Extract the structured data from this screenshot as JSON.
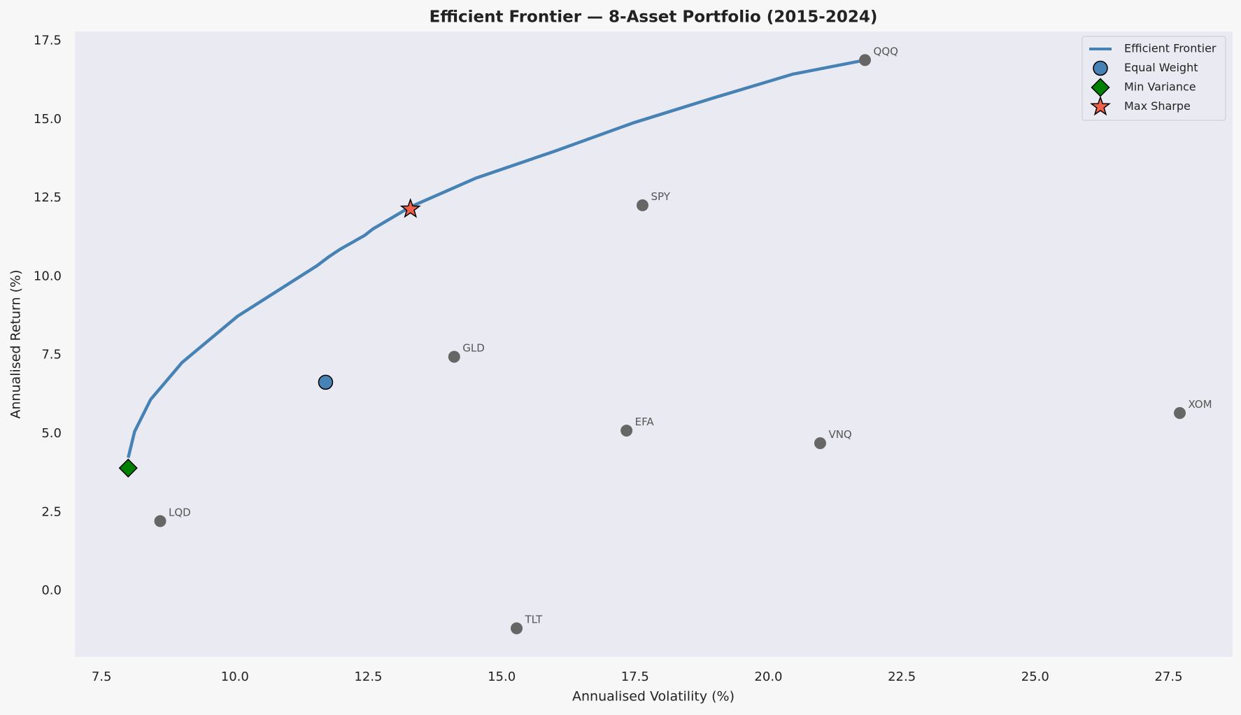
{
  "chart_data": {
    "type": "scatter",
    "title": "Efficient Frontier — 8-Asset Portfolio (2015-2024)",
    "x_label": "Annualised Volatility (%)",
    "y_label": "Annualised Return (%)",
    "xlim": [
      7.0,
      28.7
    ],
    "ylim": [
      -2.1,
      17.8
    ],
    "xticks": [
      7.5,
      {
        "value": 10,
        "label": "10.0"
      },
      12.5,
      {
        "value": 15,
        "label": "15.0"
      },
      17.5,
      {
        "value": 20,
        "label": "20.0"
      },
      22.5,
      {
        "value": 25,
        "label": "25.0"
      },
      27.5
    ],
    "yticks": [
      {
        "value": 0,
        "label": "0.0"
      },
      2.5,
      {
        "value": 5,
        "label": "5.0"
      },
      7.5,
      {
        "value": 10,
        "label": "10.0"
      },
      12.5,
      {
        "value": 15,
        "label": "15.0"
      },
      17.5
    ],
    "grid": false,
    "legend": "upper right",
    "frontier": {
      "name": "Efficient Frontier",
      "color": "#4682b4",
      "x": [
        8.0,
        8.12,
        8.42,
        9.01,
        10.05,
        11.54,
        11.76,
        11.98,
        12.43,
        12.58,
        13.29,
        14.51,
        15.99,
        17.48,
        18.96,
        20.45,
        21.81
      ],
      "y": [
        4.24,
        5.07,
        6.09,
        7.27,
        8.74,
        10.35,
        10.63,
        10.88,
        11.31,
        11.51,
        12.22,
        13.13,
        13.99,
        14.9,
        15.68,
        16.44,
        16.89
      ]
    },
    "assets": {
      "color": "#666666",
      "labels": [
        "QQQ",
        "SPY",
        "GLD",
        "EFA",
        "VNQ",
        "XOM",
        "LQD",
        "TLT"
      ],
      "x": [
        21.81,
        17.64,
        14.11,
        17.34,
        20.97,
        27.71,
        8.6,
        15.28
      ],
      "y": [
        16.89,
        12.27,
        7.45,
        5.1,
        4.7,
        5.66,
        2.22,
        -1.19
      ]
    },
    "portfolios": [
      {
        "name": "Equal Weight",
        "marker": "circle",
        "color": "#4682b4",
        "x": 11.7,
        "y": 6.64
      },
      {
        "name": "Min Variance",
        "marker": "diamond",
        "color": "#008000",
        "x": 8.0,
        "y": 3.91
      },
      {
        "name": "Max Sharpe",
        "marker": "star",
        "color": "#f0604a",
        "x": 13.29,
        "y": 12.15
      }
    ]
  }
}
